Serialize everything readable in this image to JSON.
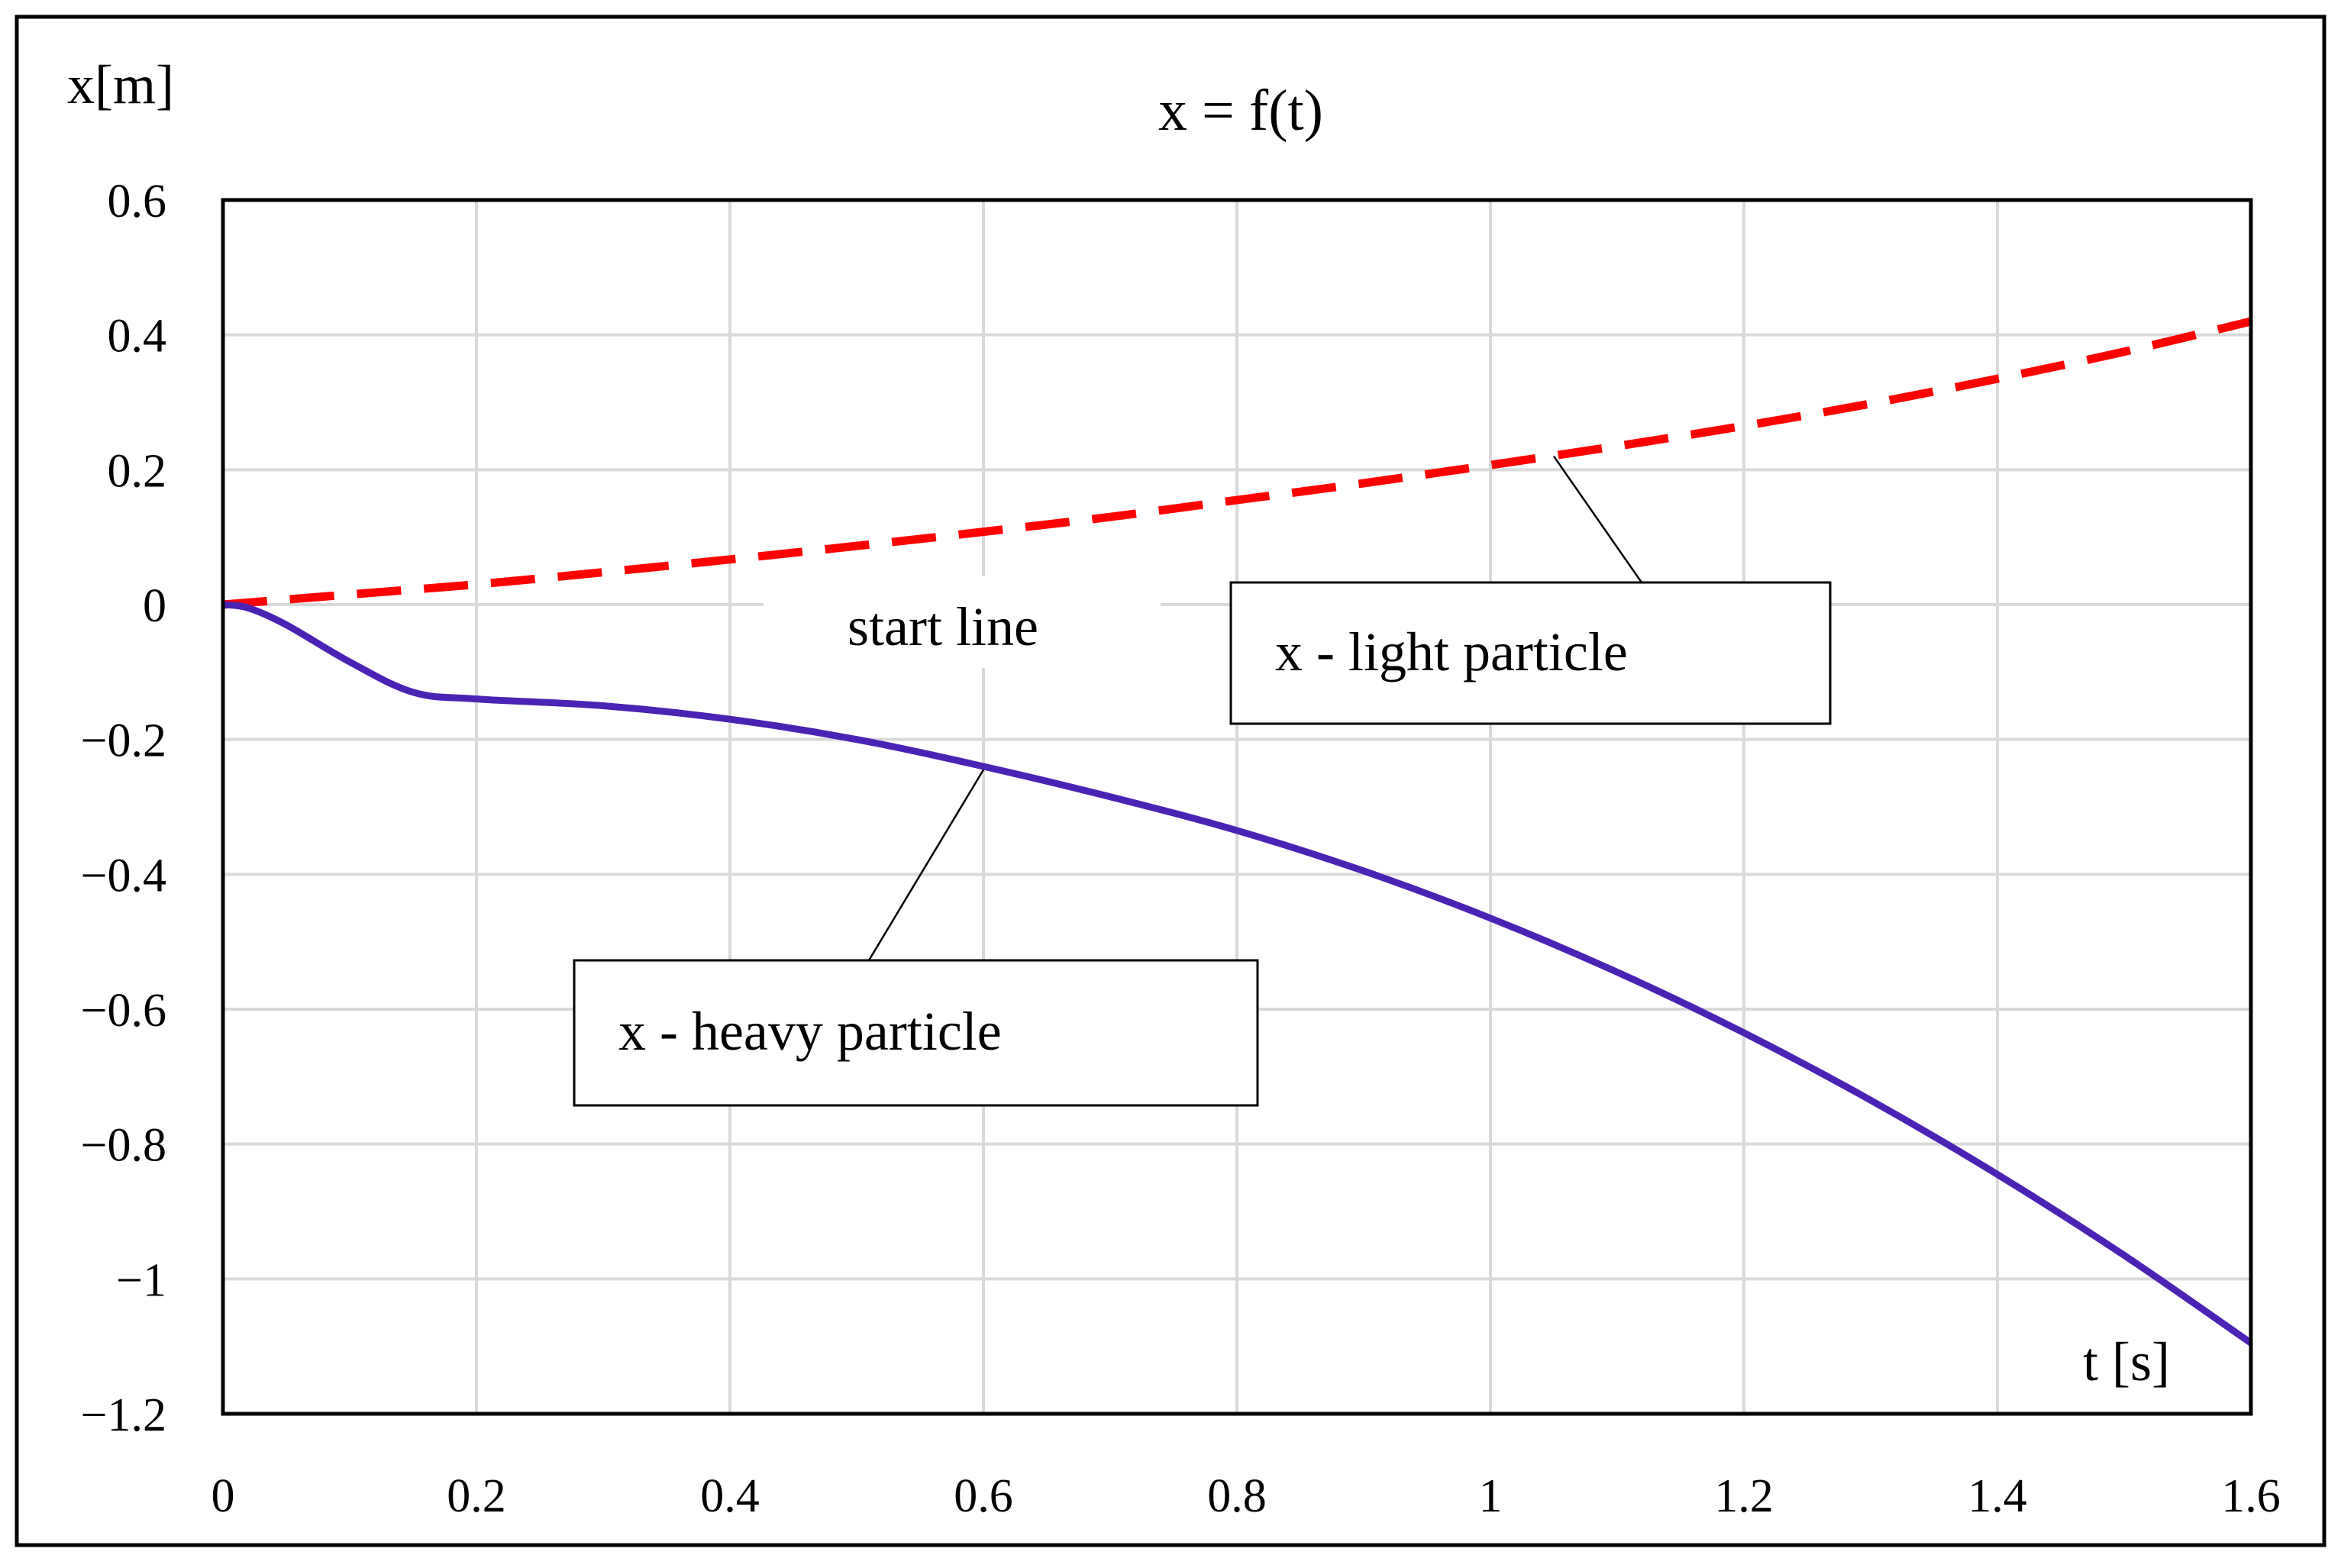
{
  "chart_data": {
    "type": "line",
    "title": "x = f(t)",
    "xlabel": "t [s]",
    "ylabel": "x[m]",
    "xlim": [
      0,
      1.6
    ],
    "ylim": [
      -1.2,
      0.6
    ],
    "xticks": [
      0,
      0.2,
      0.4,
      0.6,
      0.8,
      1,
      1.2,
      1.4,
      1.6
    ],
    "yticks": [
      0.6,
      0.4,
      0.2,
      0,
      -0.2,
      -0.4,
      -0.6,
      -0.8,
      -1,
      -1.2
    ],
    "xtick_labels": [
      "0",
      "0.2",
      "0.4",
      "0.6",
      "0.8",
      "1",
      "1.2",
      "1.4",
      "1.6"
    ],
    "ytick_labels": [
      "0.6",
      "0.4",
      "0.2",
      "0",
      "−0.2",
      "−0.4",
      "−0.6",
      "−0.8",
      "−1",
      "−1.2"
    ],
    "grid": true,
    "series": [
      {
        "name": "x - light particle",
        "style": "dashed",
        "color": "#ff0000",
        "x": [
          0,
          0.1,
          0.2,
          0.3,
          0.4,
          0.5,
          0.6,
          0.7,
          0.8,
          0.9,
          1.0,
          1.1,
          1.2,
          1.3,
          1.4,
          1.5,
          1.6
        ],
        "y": [
          0,
          0.015,
          0.03,
          0.048,
          0.067,
          0.087,
          0.108,
          0.13,
          0.155,
          0.18,
          0.207,
          0.235,
          0.265,
          0.298,
          0.335,
          0.375,
          0.42
        ]
      },
      {
        "name": "x - heavy particle",
        "style": "solid",
        "color": "#4b23b4",
        "x": [
          0,
          0.02,
          0.05,
          0.1,
          0.15,
          0.2,
          0.3,
          0.4,
          0.5,
          0.6,
          0.7,
          0.8,
          0.9,
          1.0,
          1.1,
          1.2,
          1.3,
          1.4,
          1.5,
          1.6
        ],
        "y": [
          0,
          -0.005,
          -0.03,
          -0.085,
          -0.13,
          -0.14,
          -0.15,
          -0.17,
          -0.2,
          -0.24,
          -0.285,
          -0.335,
          -0.395,
          -0.465,
          -0.545,
          -0.635,
          -0.735,
          -0.845,
          -0.965,
          -1.095
        ]
      }
    ],
    "annotations": [
      {
        "text": "start line",
        "x": 0.57,
        "y": -0.03
      },
      {
        "text": "x - light particle",
        "points_to": {
          "x": 1.05,
          "y": 0.22
        }
      },
      {
        "text": "x - heavy particle",
        "points_to": {
          "x": 0.6,
          "y": -0.245
        }
      }
    ]
  }
}
